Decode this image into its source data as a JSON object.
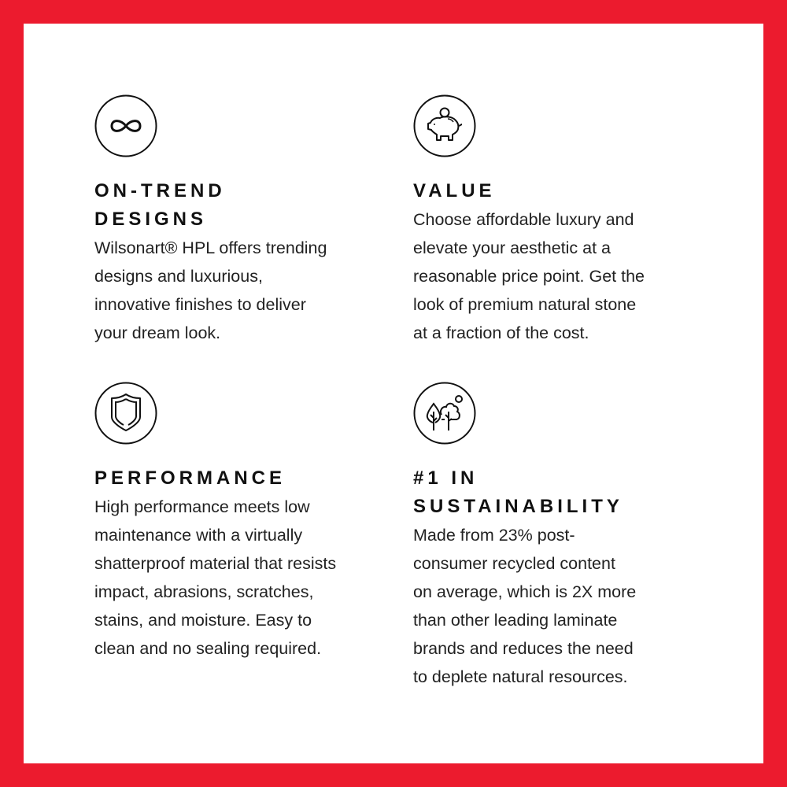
{
  "accent_color": "#ec1b2e",
  "features": [
    {
      "icon": "infinity-icon",
      "heading_lines": [
        "ON-TREND",
        "DESIGNS"
      ],
      "body_lines": [
        "Wilsonart® HPL offers trending",
        "designs and luxurious,",
        "innovative finishes to deliver",
        "your dream look."
      ]
    },
    {
      "icon": "piggy-bank-icon",
      "heading_lines": [
        "VALUE"
      ],
      "body_lines": [
        "Choose affordable luxury and",
        "elevate your aesthetic at a",
        "reasonable price point. Get the",
        "look of premium natural stone",
        "at a fraction of the cost."
      ]
    },
    {
      "icon": "shield-icon",
      "heading_lines": [
        "PERFORMANCE"
      ],
      "body_lines": [
        "High performance meets low",
        "maintenance with a virtually",
        "shatterproof material that resists",
        "impact, abrasions, scratches,",
        "stains, and moisture. Easy to",
        "clean and no sealing required."
      ]
    },
    {
      "icon": "trees-icon",
      "heading_lines": [
        "#1 IN",
        "SUSTAINABILITY"
      ],
      "body_lines": [
        "Made from 23% post-",
        "consumer recycled content",
        "on average, which is 2X more",
        "than other leading laminate",
        "brands and reduces the need",
        "to deplete natural resources."
      ]
    }
  ]
}
